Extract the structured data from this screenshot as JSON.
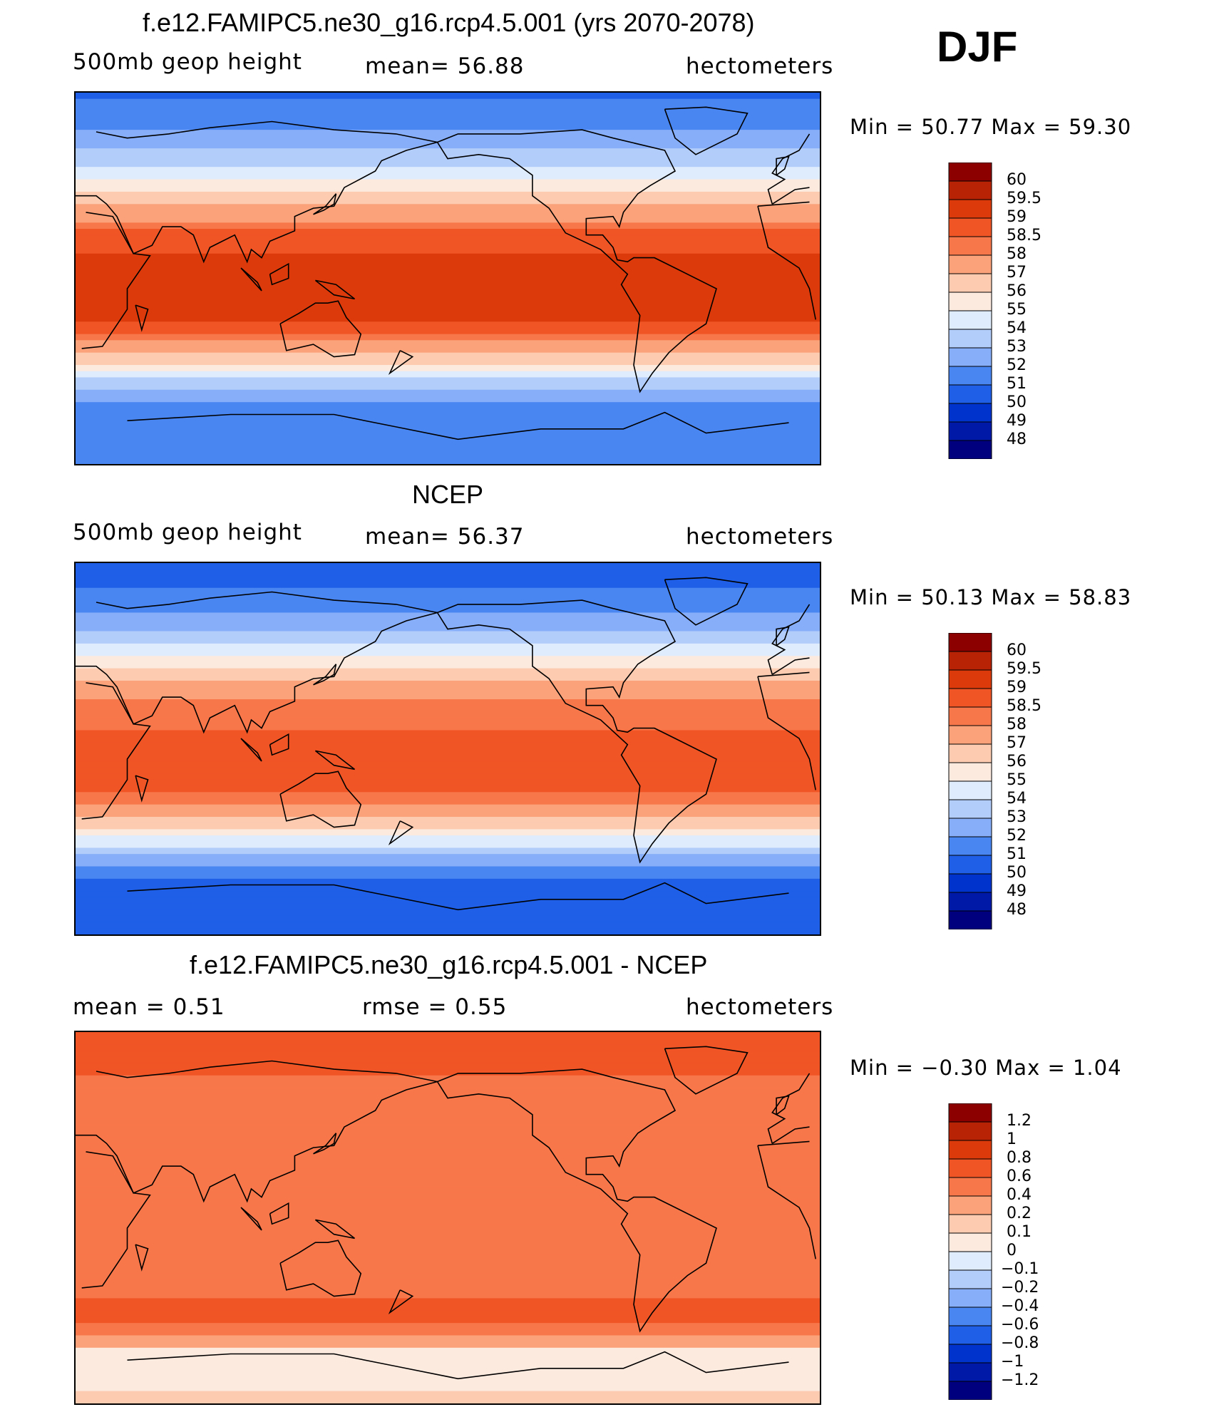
{
  "season": "DJF",
  "palettes": {
    "abs": [
      "#00007f",
      "#0019a6",
      "#0033cc",
      "#1f5fe8",
      "#4a86f2",
      "#87aef8",
      "#b3cdfb",
      "#dfecfd",
      "#fdeadf",
      "#fccbb0",
      "#fba27a",
      "#f8774a",
      "#f05526",
      "#dc3a0a",
      "#b82205",
      "#8c0000"
    ],
    "diff": [
      "#00007f",
      "#0019a6",
      "#0033cc",
      "#1f5fe8",
      "#4a86f2",
      "#87aef8",
      "#b3cdfb",
      "#dfecfd",
      "#fdeadf",
      "#fccbb0",
      "#fba27a",
      "#f8774a",
      "#f05526",
      "#dc3a0a",
      "#b82205",
      "#8c0000"
    ]
  },
  "chart_data": [
    {
      "type": "heatmap",
      "title": "f.e12.FAMIPC5.ne30_g16.rcp4.5.001 (yrs 2070-2078)",
      "left_label": "500mb geop height",
      "stat_text": "mean=  56.88",
      "units": "hectometers",
      "minmax_text": "Min =   50.77 Max =   59.30",
      "min": 50.77,
      "max": 59.3,
      "mean": 56.88,
      "levels": [
        "60",
        "59.5",
        "59",
        "58.5",
        "58",
        "57",
        "56",
        "55",
        "54",
        "53",
        "52",
        "51",
        "50",
        "49",
        "48"
      ],
      "lat_profile": [
        [
          90,
          50.9
        ],
        [
          75,
          51.6
        ],
        [
          60,
          53.2
        ],
        [
          45,
          55.5
        ],
        [
          30,
          57.8
        ],
        [
          20,
          58.9
        ],
        [
          0,
          59.2
        ],
        [
          -20,
          59.0
        ],
        [
          -30,
          58.2
        ],
        [
          -40,
          56.3
        ],
        [
          -50,
          53.8
        ],
        [
          -60,
          51.7
        ],
        [
          -75,
          51.2
        ],
        [
          -90,
          51.0
        ]
      ]
    },
    {
      "type": "heatmap",
      "title": "NCEP",
      "left_label": "500mb geop height",
      "stat_text": "mean=  56.37",
      "units": "hectometers",
      "minmax_text": "Min =   50.13 Max =   58.83",
      "min": 50.13,
      "max": 58.83,
      "mean": 56.37,
      "levels": [
        "60",
        "59.5",
        "59",
        "58.5",
        "58",
        "57",
        "56",
        "55",
        "54",
        "53",
        "52",
        "51",
        "50",
        "49",
        "48"
      ],
      "lat_profile": [
        [
          90,
          50.3
        ],
        [
          75,
          51.1
        ],
        [
          60,
          52.7
        ],
        [
          45,
          55.0
        ],
        [
          30,
          57.4
        ],
        [
          20,
          58.3
        ],
        [
          0,
          58.7
        ],
        [
          -20,
          58.5
        ],
        [
          -30,
          57.7
        ],
        [
          -40,
          55.7
        ],
        [
          -50,
          53.1
        ],
        [
          -60,
          51.1
        ],
        [
          -75,
          50.7
        ],
        [
          -90,
          50.5
        ]
      ]
    },
    {
      "type": "heatmap",
      "title": "f.e12.FAMIPC5.ne30_g16.rcp4.5.001 - NCEP",
      "left_label": "mean =    0.51",
      "stat_text": "rmse =    0.55",
      "units": "hectometers",
      "minmax_text": "Min =   −0.30 Max =     1.04",
      "min": -0.3,
      "max": 1.04,
      "mean": 0.51,
      "rmse": 0.55,
      "levels": [
        "1.2",
        "1",
        "0.8",
        "0.6",
        "0.4",
        "0.2",
        "0.1",
        "0",
        "−0.1",
        "−0.2",
        "−0.4",
        "−0.6",
        "−0.8",
        "−1",
        "−1.2"
      ],
      "lat_profile": [
        [
          90,
          0.75
        ],
        [
          75,
          0.65
        ],
        [
          60,
          0.5
        ],
        [
          45,
          0.55
        ],
        [
          30,
          0.5
        ],
        [
          15,
          0.45
        ],
        [
          0,
          0.45
        ],
        [
          -15,
          0.45
        ],
        [
          -30,
          0.5
        ],
        [
          -45,
          0.65
        ],
        [
          -55,
          0.55
        ],
        [
          -65,
          0.05
        ],
        [
          -75,
          0.0
        ],
        [
          -90,
          0.15
        ]
      ]
    }
  ]
}
